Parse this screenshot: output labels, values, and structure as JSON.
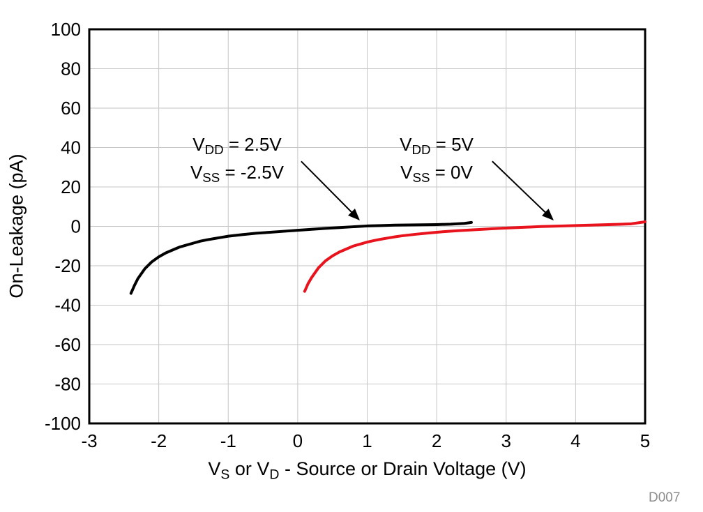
{
  "chart_data": {
    "type": "line",
    "title": "",
    "xlabel": {
      "p1": "V",
      "sub1": "S",
      "p2": " or V",
      "sub2": "D",
      "p3": " - Source or Drain Voltage (V)"
    },
    "ylabel": "On-Leakage (pA)",
    "xlim": [
      -3,
      5
    ],
    "ylim": [
      -100,
      100
    ],
    "xticks": [
      -3,
      -2,
      -1,
      0,
      1,
      2,
      3,
      4,
      5
    ],
    "yticks": [
      -100,
      -80,
      -60,
      -40,
      -20,
      0,
      20,
      40,
      60,
      80,
      100
    ],
    "grid": true,
    "legend_position": "none",
    "colors": {
      "grid": "#c6c6c6",
      "axis": "#000000",
      "arrow": "#000000",
      "watermark": "#8c8c8c"
    },
    "series": [
      {
        "name": "VDD = 2.5V, VSS = -2.5V",
        "color": "#000000",
        "x": [
          -2.4,
          -2.35,
          -2.3,
          -2.2,
          -2.1,
          -2.0,
          -1.9,
          -1.8,
          -1.7,
          -1.6,
          -1.5,
          -1.4,
          -1.3,
          -1.2,
          -1.1,
          -1.0,
          -0.8,
          -0.6,
          -0.4,
          -0.2,
          0.0,
          0.2,
          0.4,
          0.6,
          0.8,
          1.0,
          1.2,
          1.4,
          1.6,
          1.8,
          2.0,
          2.2,
          2.4,
          2.5
        ],
        "y": [
          -34,
          -30,
          -26.5,
          -21.5,
          -18,
          -15.5,
          -13.5,
          -12,
          -10.5,
          -9.5,
          -8.5,
          -7.5,
          -6.8,
          -6.2,
          -5.6,
          -5.0,
          -4.2,
          -3.5,
          -3.0,
          -2.5,
          -2.0,
          -1.5,
          -1.0,
          -0.6,
          -0.2,
          0.2,
          0.4,
          0.6,
          0.7,
          0.8,
          0.9,
          1.1,
          1.5,
          2.0
        ]
      },
      {
        "name": "VDD = 5V, VSS = 0V",
        "color": "#e8131d",
        "x": [
          0.1,
          0.15,
          0.2,
          0.3,
          0.4,
          0.5,
          0.6,
          0.7,
          0.8,
          0.9,
          1.0,
          1.1,
          1.2,
          1.3,
          1.4,
          1.5,
          1.7,
          1.9,
          2.1,
          2.3,
          2.5,
          2.7,
          2.9,
          3.1,
          3.3,
          3.5,
          3.7,
          4.0,
          4.3,
          4.6,
          4.8,
          5.0
        ],
        "y": [
          -33,
          -29,
          -26,
          -21,
          -17.5,
          -15,
          -13,
          -11.5,
          -10,
          -9,
          -8,
          -7.2,
          -6.5,
          -5.9,
          -5.3,
          -4.8,
          -4.0,
          -3.3,
          -2.7,
          -2.2,
          -1.8,
          -1.4,
          -1.0,
          -0.7,
          -0.4,
          -0.1,
          0.1,
          0.4,
          0.7,
          1.0,
          1.3,
          2.3
        ]
      }
    ],
    "annotations": [
      {
        "line1": {
          "sym": "V",
          "sub": "DD",
          "eq": " = 2.5V"
        },
        "line2": {
          "sym": "V",
          "sub": "SS",
          "eq": " = -2.5V"
        },
        "arrow": {
          "x1": 0.05,
          "y1": 33,
          "x2": 0.88,
          "y2": 3.5
        }
      },
      {
        "line1": {
          "sym": "V",
          "sub": "DD",
          "eq": " = 5V"
        },
        "line2": {
          "sym": "V",
          "sub": "SS",
          "eq": " = 0V"
        },
        "arrow": {
          "x1": 2.8,
          "y1": 33,
          "x2": 3.67,
          "y2": 3.5
        }
      }
    ],
    "watermark": "D007"
  }
}
